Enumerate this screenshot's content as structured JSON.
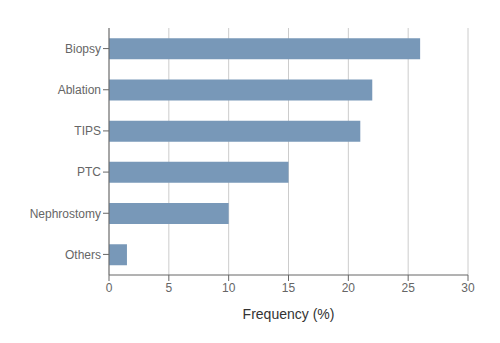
{
  "chart_data": {
    "type": "bar",
    "orientation": "horizontal",
    "categories": [
      "Biopsy",
      "Ablation",
      "TIPS",
      "PTC",
      "Nephrostomy",
      "Others"
    ],
    "values": [
      26,
      22,
      21,
      15,
      10,
      1.5
    ],
    "color": "#7898b8",
    "xlabel": "Frequency (%)",
    "xlim": [
      0,
      30
    ],
    "xticks": [
      0,
      5,
      10,
      15,
      20,
      25,
      30
    ],
    "grid": true
  }
}
